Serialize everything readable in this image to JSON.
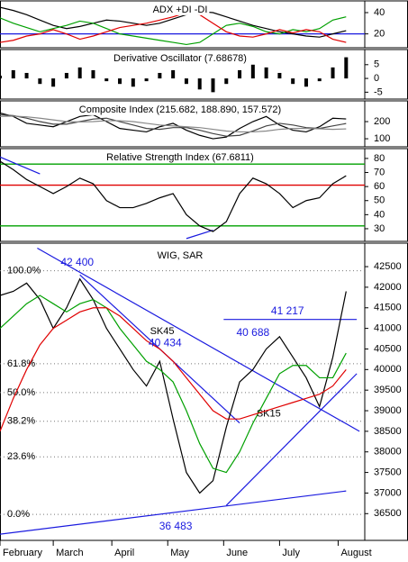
{
  "chart_data": [
    {
      "type": "line",
      "title": "ADX +DI -DI",
      "xlim": [
        0,
        137
      ],
      "x": [
        0,
        5,
        10,
        15,
        20,
        25,
        30,
        35,
        40,
        45,
        50,
        55,
        60,
        65,
        70,
        75,
        80,
        85,
        90,
        95,
        100,
        105,
        110,
        115,
        120,
        125,
        130
      ],
      "ylim": [
        7,
        51
      ],
      "yticks": [
        40,
        20
      ],
      "levels": [
        {
          "value": 20,
          "color": "#1a1adf"
        }
      ],
      "series": [
        {
          "color": "#000000",
          "values": [
            45,
            42,
            38,
            33,
            28,
            25,
            27,
            30,
            33,
            32,
            30,
            28,
            30,
            34,
            38,
            41,
            40,
            36,
            32,
            28,
            25,
            22,
            20,
            18,
            17,
            20,
            23
          ]
        },
        {
          "color": "#00a000",
          "values": [
            35,
            30,
            26,
            22,
            25,
            28,
            32,
            30,
            25,
            20,
            18,
            16,
            14,
            12,
            10,
            12,
            20,
            28,
            30,
            27,
            22,
            20,
            24,
            22,
            25,
            33,
            36
          ]
        },
        {
          "color": "#e00000",
          "values": [
            12,
            14,
            18,
            20,
            24,
            20,
            15,
            18,
            22,
            26,
            28,
            30,
            33,
            36,
            40,
            38,
            30,
            22,
            18,
            17,
            20,
            24,
            21,
            24,
            22,
            15,
            12
          ]
        }
      ]
    },
    {
      "type": "bar",
      "title": "Derivative Oscillator (7.68678)",
      "xlim": [
        0,
        137
      ],
      "x": [
        0,
        5,
        10,
        15,
        20,
        25,
        30,
        35,
        40,
        45,
        50,
        55,
        60,
        65,
        70,
        75,
        80,
        85,
        90,
        95,
        100,
        105,
        110,
        115,
        120,
        125,
        130
      ],
      "ylim": [
        -7.5,
        10.5
      ],
      "yticks": [
        5,
        0,
        -5
      ],
      "series": [
        {
          "color": "#000000",
          "values": [
            1,
            3,
            2,
            -2,
            -3,
            2,
            4,
            3,
            -1,
            -2,
            -3,
            -1,
            2,
            3,
            -2,
            -4,
            -5,
            -2,
            3,
            5,
            4,
            2,
            -2,
            -3,
            -1,
            4,
            7.68678
          ]
        }
      ]
    },
    {
      "type": "line",
      "title": "Composite Index (215.682, 188.890, 157.572)",
      "xlim": [
        0,
        137
      ],
      "x": [
        0,
        5,
        10,
        15,
        20,
        25,
        30,
        35,
        40,
        45,
        50,
        55,
        60,
        65,
        70,
        75,
        80,
        85,
        90,
        95,
        100,
        105,
        110,
        115,
        120,
        125,
        130
      ],
      "ylim": [
        53,
        321
      ],
      "yticks": [
        200,
        100
      ],
      "series": [
        {
          "color": "#000000",
          "values": [
            250,
            230,
            190,
            180,
            170,
            200,
            230,
            240,
            200,
            160,
            150,
            140,
            170,
            190,
            150,
            120,
            100,
            110,
            160,
            200,
            230,
            180,
            150,
            140,
            170,
            220,
            215.682
          ]
        },
        {
          "color": "#444444",
          "values": [
            240,
            235,
            220,
            200,
            185,
            185,
            200,
            215,
            220,
            200,
            180,
            160,
            155,
            165,
            165,
            150,
            130,
            115,
            120,
            145,
            175,
            190,
            180,
            165,
            160,
            175,
            188.89
          ]
        },
        {
          "color": "#888888",
          "values": [
            230,
            232,
            228,
            220,
            210,
            200,
            198,
            200,
            205,
            205,
            200,
            190,
            180,
            175,
            170,
            165,
            155,
            145,
            140,
            140,
            145,
            155,
            160,
            160,
            158,
            155,
            157.572
          ]
        }
      ]
    },
    {
      "type": "line",
      "title": "Relative Strength Index (67.6811)",
      "xlim": [
        0,
        137
      ],
      "x": [
        0,
        5,
        10,
        15,
        20,
        25,
        30,
        35,
        40,
        45,
        50,
        55,
        60,
        65,
        70,
        75,
        80,
        85,
        90,
        95,
        100,
        105,
        110,
        115,
        120,
        125,
        130
      ],
      "ylim": [
        21,
        87
      ],
      "yticks": [
        80,
        70,
        60,
        50,
        40,
        30
      ],
      "levels": [
        {
          "value": 76,
          "color": "#00a000"
        },
        {
          "value": 61,
          "color": "#e00000"
        },
        {
          "value": 32,
          "color": "#00a000"
        }
      ],
      "trendlines": [
        {
          "color": "#1a1adf",
          "x": [
            0,
            15
          ],
          "values": [
            81,
            69
          ]
        },
        {
          "color": "#1a1adf",
          "x": [
            70,
            80
          ],
          "values": [
            23,
            29
          ]
        }
      ],
      "series": [
        {
          "color": "#000000",
          "values": [
            78,
            72,
            65,
            60,
            55,
            60,
            66,
            62,
            50,
            45,
            45,
            48,
            52,
            55,
            40,
            32,
            28,
            35,
            55,
            66,
            62,
            55,
            45,
            50,
            52,
            62,
            67.6811
          ]
        }
      ]
    },
    {
      "type": "line",
      "title": "WIG, SAR",
      "xlim": [
        0,
        137
      ],
      "x": [
        0,
        5,
        10,
        15,
        20,
        25,
        30,
        35,
        40,
        45,
        50,
        55,
        60,
        65,
        70,
        75,
        80,
        85,
        90,
        95,
        100,
        105,
        110,
        115,
        120,
        125,
        130
      ],
      "ylim": [
        35850,
        43070
      ],
      "yticks": [
        42500,
        42000,
        41500,
        41000,
        40500,
        40000,
        39500,
        39000,
        38500,
        38000,
        37500,
        37000,
        36500
      ],
      "xticks": [
        {
          "value": 0,
          "label": "February"
        },
        {
          "value": 20,
          "label": "March"
        },
        {
          "value": 42,
          "label": "April"
        },
        {
          "value": 63,
          "label": "May"
        },
        {
          "value": 84,
          "label": "June"
        },
        {
          "value": 105,
          "label": "July"
        },
        {
          "value": 127,
          "label": "August"
        }
      ],
      "fib_levels": [
        {
          "label": "100.0%",
          "value": 42400
        },
        {
          "label": "61.8%",
          "value": 40140
        },
        {
          "label": "50.0%",
          "value": 39441
        },
        {
          "label": "38.2%",
          "value": 38743
        },
        {
          "label": "23.6%",
          "value": 37879
        },
        {
          "label": "0.0%",
          "value": 36483
        }
      ],
      "trendlines": [
        {
          "color": "#1a1adf",
          "x": [
            14,
            135
          ],
          "values": [
            42950,
            38500
          ]
        },
        {
          "color": "#1a1adf",
          "x": [
            30,
            90
          ],
          "values": [
            42300,
            38700
          ]
        },
        {
          "color": "#1a1adf",
          "x": [
            85,
            134
          ],
          "values": [
            36700,
            39900
          ]
        },
        {
          "color": "#1a1adf",
          "x": [
            0,
            130
          ],
          "values": [
            36000,
            37050
          ]
        },
        {
          "color": "#1a1adf",
          "x": [
            84,
            134
          ],
          "values": [
            41217,
            41217
          ]
        }
      ],
      "annotations": [
        {
          "label": "42 400",
          "x": 29,
          "value": 42400
        },
        {
          "label": "41 217",
          "x": 108,
          "value": 41217
        },
        {
          "label": "40 688",
          "x": 95,
          "value": 40688
        },
        {
          "label": "40 434",
          "x": 62,
          "value": 40434
        },
        {
          "label": "36 483",
          "x": 66,
          "value": 36483
        }
      ],
      "series": [
        {
          "color": "#000000",
          "values": [
            41800,
            41900,
            42100,
            41700,
            41000,
            41500,
            42200,
            41700,
            41000,
            40500,
            40000,
            39600,
            40200,
            38800,
            37500,
            37000,
            37300,
            38600,
            39700,
            40000,
            40500,
            40800,
            40300,
            39800,
            39100,
            40300,
            41900
          ]
        },
        {
          "name": "SK15",
          "color": "#00a000",
          "values": [
            41000,
            41300,
            41600,
            41800,
            41600,
            41400,
            41600,
            41700,
            41500,
            41000,
            40600,
            40200,
            40000,
            39700,
            39000,
            38200,
            37600,
            37500,
            38000,
            38700,
            39300,
            39900,
            40100,
            40100,
            39800,
            39800,
            40400
          ]
        },
        {
          "name": "SK45",
          "color": "#e00000",
          "values": [
            38500,
            39300,
            40000,
            40600,
            41000,
            41200,
            41400,
            41500,
            41500,
            41300,
            41000,
            40700,
            40500,
            40200,
            39800,
            39400,
            39000,
            38800,
            38800,
            38900,
            39000,
            39100,
            39200,
            39300,
            39400,
            39600,
            40000
          ]
        }
      ]
    }
  ]
}
